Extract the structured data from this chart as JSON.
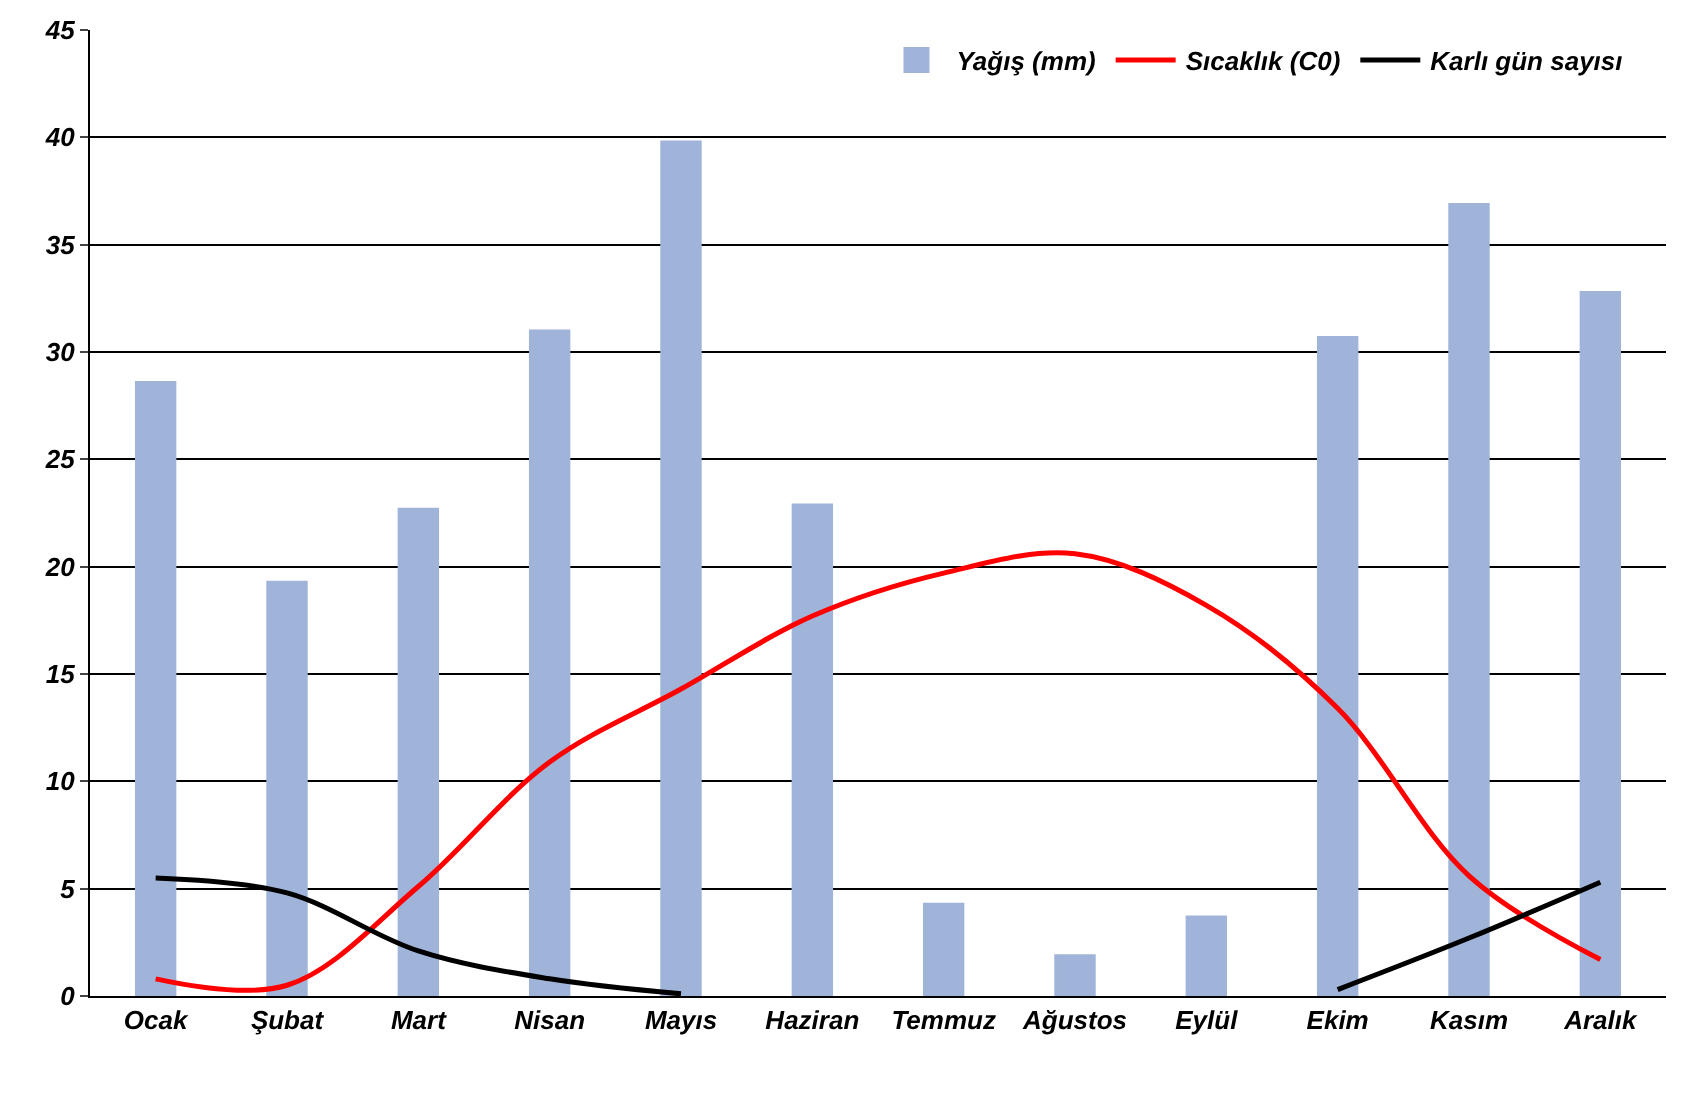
{
  "chart_data": {
    "type": "bar",
    "categories": [
      "Ocak",
      "Şubat",
      "Mart",
      "Nisan",
      "Mayıs",
      "Haziran",
      "Temmuz",
      "Ağustos",
      "Eylül",
      "Ekim",
      "Kasım",
      "Aralık"
    ],
    "series": [
      {
        "name": "Yağış (mm)",
        "color": "#9fb4d8",
        "values": [
          28.6,
          19.3,
          22.7,
          31.0,
          39.8,
          22.9,
          4.3,
          1.9,
          3.7,
          30.7,
          36.9,
          32.8
        ]
      },
      {
        "name": "Sıcaklık (C0)",
        "type": "line",
        "color": "#ff0000",
        "values": [
          0.8,
          0.5,
          5.1,
          10.9,
          14.3,
          17.7,
          19.7,
          20.6,
          18.2,
          13.4,
          5.6,
          1.7
        ]
      },
      {
        "name": "Karlı gün sayısı",
        "type": "line",
        "color": "#000000",
        "values": [
          5.5,
          4.8,
          2.1,
          0.8,
          0.1,
          null,
          null,
          null,
          null,
          0.3,
          2.7,
          5.3
        ]
      }
    ],
    "ylim": [
      0,
      45
    ],
    "yticks": [
      0,
      5,
      10,
      15,
      20,
      25,
      30,
      35,
      40,
      45
    ],
    "grid": "y",
    "legend": "top right",
    "marker": "none",
    "line_style": "solid"
  }
}
